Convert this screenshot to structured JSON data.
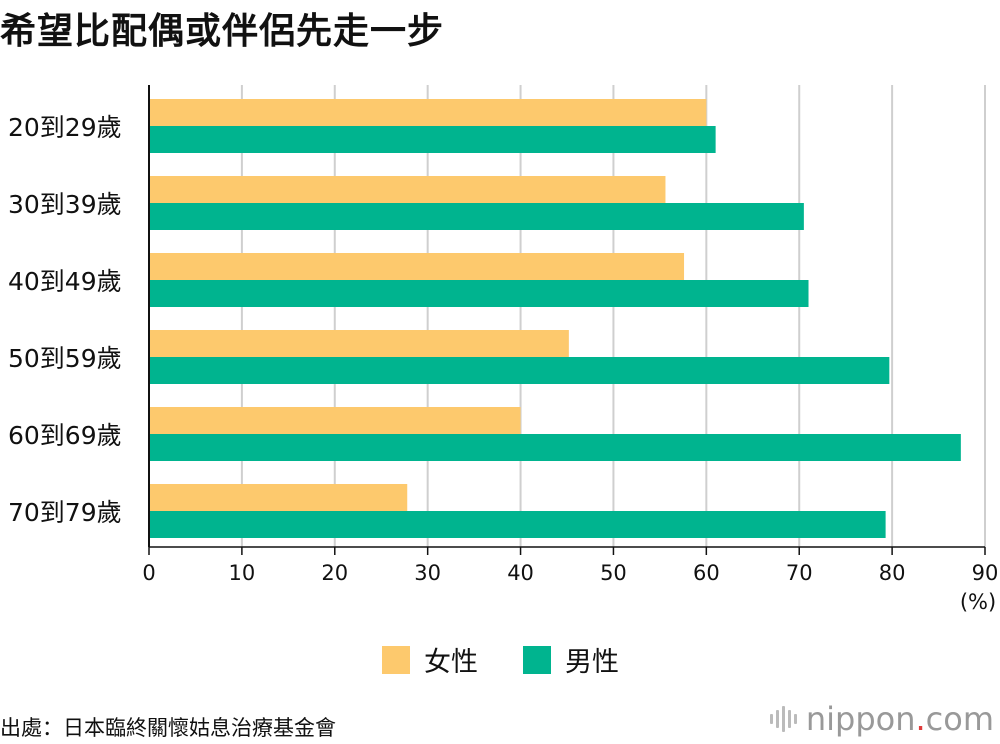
{
  "title": "希望比配偶或伴侶先走一步",
  "legend": {
    "female": "女性",
    "male": "男性"
  },
  "colors": {
    "female": "#fdc96d",
    "male": "#00b48f",
    "grid": "#cfcfcf",
    "axis": "#111111"
  },
  "unit_label": "(%)",
  "source": "出處：日本臨終關懷姑息治療基金會",
  "logo": {
    "main": "nippon",
    "dot": ".",
    "suffix": "com"
  },
  "chart_data": {
    "type": "bar",
    "orientation": "horizontal",
    "categories": [
      "20到29歲",
      "30到39歲",
      "40到49歲",
      "50到59歲",
      "60到69歲",
      "70到79歲"
    ],
    "series": [
      {
        "name": "女性",
        "values": [
          60,
          55.6,
          57.6,
          45.2,
          40,
          27.8
        ]
      },
      {
        "name": "男性",
        "values": [
          61,
          70.5,
          71,
          79.7,
          87.4,
          79.3
        ]
      }
    ],
    "xlim": [
      0,
      90
    ],
    "xticks": [
      "0",
      "10",
      "20",
      "30",
      "40",
      "50",
      "60",
      "70",
      "80",
      "90"
    ],
    "grid": true,
    "legend_position": "bottom"
  }
}
